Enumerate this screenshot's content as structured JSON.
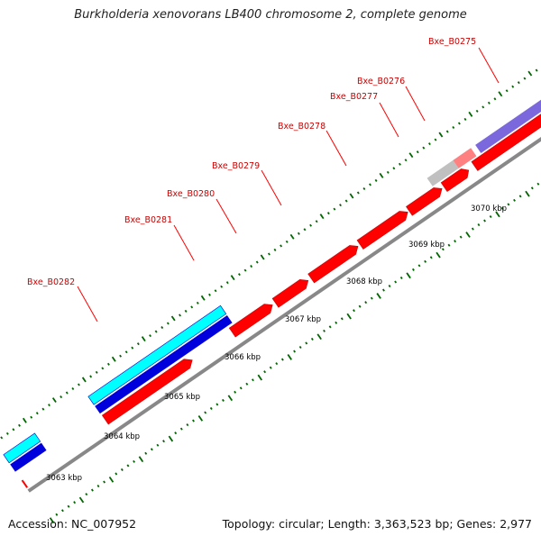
{
  "title": "Burkholderia xenovorans LB400 chromosome 2, complete genome",
  "footer": {
    "accession": "Accession: NC_007952",
    "summary": "Topology: circular; Length: 3,363,523 bp; Genes: 2,977"
  },
  "scale_labels": [
    "3063 kbp",
    "3064 kbp",
    "3065 kbp",
    "3066 kbp",
    "3067 kbp",
    "3068 kbp",
    "3069 kbp",
    "3070 kbp"
  ],
  "gene_labels": [
    "Bxe_B0275",
    "Bxe_B0276",
    "Bxe_B0277",
    "Bxe_B0278",
    "Bxe_B0279",
    "Bxe_B0280",
    "Bxe_B0281",
    "Bxe_B0282"
  ],
  "colors": {
    "cds": "#ff0000",
    "cds_edge": "#cc0000",
    "cog_blue": "#0000dd",
    "cog_cyan": "#00ffff",
    "cog_purple": "#7b68dd",
    "pink": "#ff8080",
    "grey_feature": "#c0c0c0",
    "backbone": "#888888",
    "tick": "#006600",
    "label": "#cc0000",
    "scale_text": "#000000"
  }
}
